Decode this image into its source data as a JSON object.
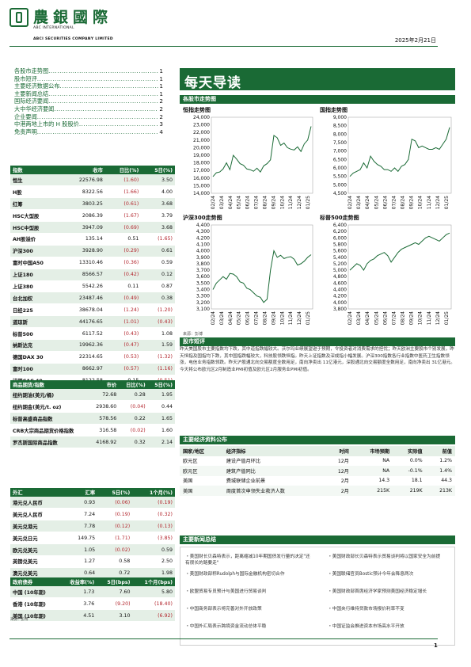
{
  "header": {
    "brand_cn": "農銀國際",
    "brand_en1": "ABC INTERNATIONAL",
    "brand_en2": "ABCI SECURITIES COMPANY LIMITED",
    "date": "2025年2月21日"
  },
  "toc": [
    {
      "label": "各股市走势图",
      "page": "1"
    },
    {
      "label": "股市短评",
      "page": "1"
    },
    {
      "label": "主要经济数据公布",
      "page": "1"
    },
    {
      "label": "主要新闻总结",
      "page": "1"
    },
    {
      "label": "国际经济要闻",
      "page": "2"
    },
    {
      "label": "大中华经济要闻",
      "page": "2"
    },
    {
      "label": "企业要闻",
      "page": "2"
    },
    {
      "label": "中港两地上市的 H 股股价",
      "page": "3"
    },
    {
      "label": "免责声明",
      "page": "4"
    }
  ],
  "banner": "每天导读",
  "charts_section": "各股市走势图",
  "charts": [
    {
      "title": "恒指走势图",
      "yticks": [
        "24,000",
        "23,000",
        "22,000",
        "21,000",
        "20,000",
        "19,000",
        "18,000",
        "17,000",
        "16,000",
        "15,000",
        "14,000"
      ],
      "xticks": [
        "02/24",
        "03/24",
        "04/24",
        "05/24",
        "06/24",
        "07/24",
        "08/24",
        "09/24",
        "10/24",
        "11/24",
        "12/24",
        "01/25"
      ]
    },
    {
      "title": "国指走势图",
      "yticks": [
        "9,000",
        "8,500",
        "8,000",
        "7,500",
        "7,000",
        "6,500",
        "6,000",
        "5,500",
        "5,000",
        "4,500"
      ],
      "xticks": [
        "02/24",
        "03/24",
        "04/24",
        "05/24",
        "06/24",
        "07/24",
        "08/24",
        "09/24",
        "10/24",
        "11/24",
        "12/24",
        "01/25"
      ]
    },
    {
      "title": "沪深300走势图",
      "yticks": [
        "4,400",
        "4,300",
        "4,200",
        "4,100",
        "4,000",
        "3,900",
        "3,800",
        "3,700",
        "3,600",
        "3,500",
        "3,400",
        "3,300",
        "3,200",
        "3,100"
      ],
      "xticks": [
        "02/24",
        "03/24",
        "04/24",
        "05/24",
        "06/24",
        "07/24",
        "08/24",
        "09/24",
        "10/24",
        "11/24",
        "12/24",
        "01/25"
      ]
    },
    {
      "title": "标普500走势图",
      "yticks": [
        "6,400",
        "6,200",
        "6,000",
        "5,800",
        "5,600",
        "5,400",
        "5,200",
        "5,000",
        "4,800",
        "4,600",
        "4,400",
        "4,200",
        "4,000",
        "3,800"
      ],
      "xticks": [
        "02/24",
        "03/24",
        "04/24",
        "05/24",
        "06/24",
        "07/24",
        "08/24",
        "09/24",
        "10/24",
        "11/24",
        "12/24",
        "01/25"
      ]
    }
  ],
  "chart_source": "来源：彭博",
  "chart_data": [
    {
      "type": "line",
      "title": "恒指走势图",
      "ylim": [
        14000,
        24000
      ],
      "series": [
        {
          "values": [
            16200,
            16700,
            16800,
            17200,
            18000,
            17100,
            19000,
            18500,
            17900,
            17700,
            17200,
            17100,
            16900,
            17300,
            16800,
            17600,
            17900,
            18400,
            21600,
            21300,
            20300,
            20600,
            20000,
            19800,
            19700,
            20100,
            19500,
            20500,
            21000,
            22800
          ]
        }
      ]
    },
    {
      "type": "line",
      "title": "国指走势图",
      "ylim": [
        4500,
        9000
      ],
      "series": [
        {
          "values": [
            5500,
            5700,
            5800,
            5900,
            6300,
            6000,
            6700,
            6400,
            6200,
            6100,
            5900,
            5900,
            5800,
            6000,
            5800,
            6100,
            6200,
            6500,
            7700,
            7600,
            7200,
            7300,
            7200,
            7100,
            7100,
            7200,
            7100,
            7400,
            7700,
            8400
          ]
        }
      ]
    },
    {
      "type": "line",
      "title": "沪深300走势图",
      "ylim": [
        3100,
        4400
      ],
      "series": [
        {
          "values": [
            3400,
            3500,
            3550,
            3600,
            3560,
            3650,
            3640,
            3600,
            3520,
            3500,
            3420,
            3400,
            3350,
            3300,
            3280,
            3200,
            3250,
            3700,
            4000,
            3900,
            3930,
            3880,
            3900,
            3910,
            3870,
            3780,
            3800,
            3840,
            3900,
            3940
          ]
        }
      ]
    },
    {
      "type": "line",
      "title": "标普500走势图",
      "ylim": [
        3800,
        6400
      ],
      "series": [
        {
          "values": [
            5000,
            5100,
            5200,
            5150,
            5000,
            5200,
            5300,
            5350,
            5450,
            5500,
            5550,
            5450,
            5250,
            5400,
            5550,
            5650,
            5700,
            5750,
            5800,
            5850,
            5800,
            5900,
            6000,
            6050,
            6000,
            5950,
            5900,
            6000,
            6100,
            6150
          ]
        }
      ]
    }
  ],
  "stock_comment": {
    "heading": "股市短评",
    "text": "昨天美国股市主要指数均下跌，其中道指跌幅较大。沃尔玛业绩展望逊于预期，令投资者对消费需求的担忧；昨天欧洲主要股市个别发展，昨天恒指及国指均下跌，其中国指跌幅较大，科技股领跌恒指。昨天上证指数及深成指小幅发展。沪深300指数各行业指数中医药卫生指数领涨，电信业务指数领跌。昨天沪股通北向交易额度全数用足，南向净卖出 11亿港元，深股通北向交易额度全数用足，南向净卖出 31亿港元。今天将公布欧元区2月制造业PMI初值及欧元区2月服务业PMI初值。"
  },
  "market_table": {
    "headers": [
      "指数",
      "收市",
      "日比(%)",
      "5日(%)"
    ],
    "rows": [
      [
        "恒生",
        "22576.98",
        "(1.60)",
        "3.50"
      ],
      [
        "H股",
        "8322.56",
        "(1.66)",
        "4.00"
      ],
      [
        "红筹",
        "3803.25",
        "(0.61)",
        "3.68"
      ],
      [
        "HSC大型股",
        "2086.39",
        "(1.67)",
        "3.79"
      ],
      [
        "HSC中型股",
        "3947.09",
        "(0.69)",
        "3.68"
      ],
      [
        "AH股溢价",
        "135.14",
        "0.51",
        "(1.65)"
      ],
      [
        "沪深300",
        "3928.90",
        "(0.29)",
        "0.61"
      ],
      [
        "富时中国A50",
        "13310.46",
        "(0.36)",
        "0.59"
      ],
      [
        "上证180",
        "8566.57",
        "(0.42)",
        "0.12"
      ],
      [
        "上证380",
        "5542.26",
        "0.11",
        "0.87"
      ],
      [
        "台北加权",
        "23487.46",
        "(0.49)",
        "0.38"
      ],
      [
        "日经225",
        "38678.04",
        "(1.24)",
        "(1.20)"
      ],
      [
        "道琼斯",
        "44176.65",
        "(1.01)",
        "(0.43)"
      ],
      [
        "标普500",
        "6117.52",
        "(0.43)",
        "1.08"
      ],
      [
        "纳斯达克",
        "19962.36",
        "(0.47)",
        "1.59"
      ],
      [
        "德国DAX 30",
        "22314.65",
        "(0.53)",
        "(1.32)"
      ],
      [
        "富时100",
        "8662.97",
        "(0.57)",
        "(1.16)"
      ],
      [
        "法国CAC 40",
        "8122.58",
        "0.15",
        "(0.51)"
      ]
    ]
  },
  "commodity_table": {
    "headers": [
      "商品期货/指数",
      "市价",
      "日比(%)",
      "5日(%)"
    ],
    "rows": [
      [
        "纽约期油(美元/桶)",
        "72.68",
        "0.28",
        "1.95"
      ],
      [
        "纽约期金(美元/t. oz)",
        "2938.60",
        "(0.04)",
        "0.44"
      ],
      [
        "标普高盛商品指数",
        "578.56",
        "0.22",
        "1.65"
      ],
      [
        "CRB大宗商品期货价格指数",
        "316.58",
        "(0.02)",
        "1.60"
      ],
      [
        "罗杰斯国际商品指数",
        "4168.92",
        "0.32",
        "2.14"
      ]
    ]
  },
  "fx_table": {
    "headers": [
      "外汇",
      "汇率",
      "5日(%)",
      "1个月(%)"
    ],
    "rows": [
      [
        "港元兑人民币",
        "0.93",
        "(0.06)",
        "(0.19)"
      ],
      [
        "美元兑人民币",
        "7.24",
        "(0.19)",
        "(0.32)"
      ],
      [
        "美元兑港元",
        "7.78",
        "(0.12)",
        "(0.13)"
      ],
      [
        "美元兑日元",
        "149.75",
        "(1.71)",
        "(3.85)"
      ],
      [
        "欧元兑美元",
        "1.05",
        "(0.02)",
        "0.59"
      ],
      [
        "英镑兑美元",
        "1.27",
        "0.58",
        "2.50"
      ],
      [
        "澳元兑美元",
        "0.64",
        "0.72",
        "1.98"
      ]
    ]
  },
  "bond_table": {
    "headers": [
      "政府债券",
      "收益率(%)",
      "5日(bps)",
      "1个月(bps)"
    ],
    "rows": [
      [
        "中国 (10年期)",
        "1.73",
        "7.60",
        "5.80"
      ],
      [
        "香港 (10年期)",
        "3.76",
        "(9.20)",
        "(18.40)"
      ],
      [
        "美国 (10年期)",
        "4.51",
        "3.10",
        "(6.92)"
      ]
    ],
    "source": "来源：彭博"
  },
  "econ": {
    "heading": "主要经济资料公布",
    "headers": [
      "国家/地区",
      "经济指标",
      "时间",
      "市场预期",
      "实际值",
      "前值"
    ],
    "rows": [
      [
        "欧元区",
        "建设产值月环比",
        "12月",
        "NA",
        "0.0%",
        "1.2%"
      ],
      [
        "欧元区",
        "建筑产值同比",
        "12月",
        "NA",
        "-0.1%",
        "1.4%"
      ],
      [
        "美国",
        "费城联储企业前景",
        "2月",
        "14.3",
        "18.1",
        "44.3"
      ],
      [
        "美国",
        "周度首次申领失业救济人数",
        "2月",
        "215K",
        "219K",
        "213K"
      ]
    ]
  },
  "news": {
    "heading": "主要新闻总结",
    "items": [
      "・美国财长贝森特表示，距离缩减10年期国债发行量的决定\"还有很长的路要走\"",
      "・美国财政部长贝森特表示贸易谈判将以国家安全为前提",
      "・美国财政部称Rudolph与国际金融机构密切合作",
      "・美国联储官员Bostic预计今年会降息两次",
      "・欧盟贸易专员预计与美国进行贸易谈判",
      "・美国财政部首席经济学家预测美国经济稳定增长",
      "・中国商务部表示将完善对外开放政策",
      "・中国央行维持贷款市场报价利率不变",
      "・中国外汇局表示跨境资金流动总体平稳",
      "・中国证监会推进资本市场高水平开放"
    ]
  },
  "page_number": "1"
}
